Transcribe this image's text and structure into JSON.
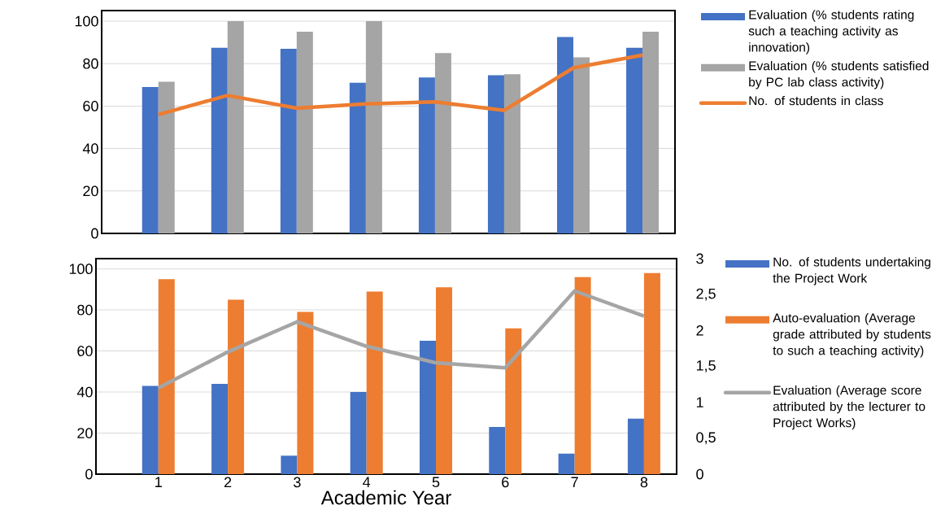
{
  "chart_data": [
    {
      "type": "bar",
      "categories": [
        "1",
        "2",
        "3",
        "4",
        "5",
        "6",
        "7",
        "8"
      ],
      "series": [
        {
          "name": "Evaluation (% students rating such a teaching activity as innovation)",
          "color": "#4472c4",
          "values": [
            69,
            87.5,
            87,
            71,
            73.5,
            74.5,
            92.5,
            87.5
          ]
        },
        {
          "name": "Evaluation (% students satisfied by PC lab class activity)",
          "color": "#a5a5a5",
          "values": [
            71.5,
            100,
            95,
            100,
            85,
            75,
            83,
            95
          ]
        },
        {
          "name": "No. of students in class",
          "color": "#ed7d31",
          "type": "line",
          "values": [
            56,
            65,
            59,
            61,
            62,
            58,
            78,
            84
          ]
        }
      ],
      "ylim": [
        0,
        105
      ],
      "yticks": [
        0,
        20,
        40,
        60,
        80,
        100
      ],
      "grid": "y",
      "legend": "right",
      "tick_labels": "y"
    },
    {
      "type": "bar",
      "categories": [
        "1",
        "2",
        "3",
        "4",
        "5",
        "6",
        "7",
        "8"
      ],
      "xlabel": "Academic Year",
      "series": [
        {
          "name": "No. of students undertaking the Project Work",
          "color": "#4472c4",
          "values": [
            43,
            44,
            9,
            40,
            65,
            23,
            10,
            27
          ]
        },
        {
          "name": "Auto-evaluation (Average grade attributed by students to such a teaching activity)",
          "color": "#ed7d31",
          "values": [
            95,
            85,
            79,
            89,
            91,
            71,
            96,
            98
          ]
        },
        {
          "name": "Evaluation (Average score attributed by the lecturer to Project Works)",
          "color": "#a5a5a5",
          "type": "line",
          "axis": "y2",
          "values": [
            1.2,
            1.7,
            2.12,
            1.78,
            1.55,
            1.48,
            2.55,
            2.2
          ]
        }
      ],
      "ylim": [
        0,
        105
      ],
      "yticks": [
        0,
        20,
        40,
        60,
        80,
        100
      ],
      "y2lim": [
        0,
        3
      ],
      "y2ticks": [
        0,
        {
          "value": 0.5,
          "label": "0,5"
        },
        1,
        {
          "value": 1.5,
          "label": "1,5"
        },
        2,
        {
          "value": 2.5,
          "label": "2,5"
        },
        3
      ],
      "grid": "y",
      "legend": "right"
    }
  ]
}
